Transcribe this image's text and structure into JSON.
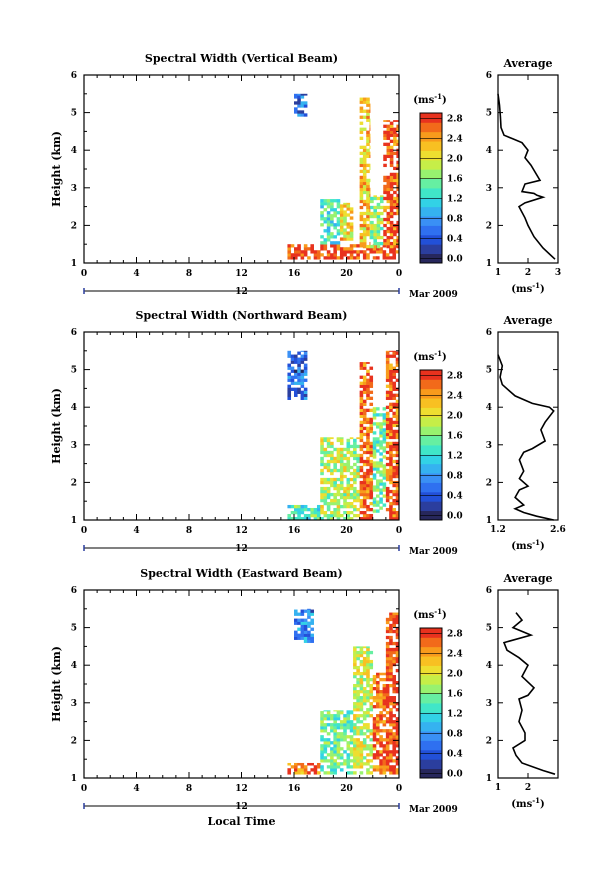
{
  "figure": {
    "xlabel": "Local Time",
    "date_label": "Mar 2009",
    "day_label": "12",
    "colorbar_unit": "(ms",
    "colorbar_unit_exp": "-1",
    "colorbar_unit_close": ")",
    "avg_title": "Average",
    "avg_unit": "(ms",
    "avg_unit_exp": "-1",
    "avg_unit_close": ")"
  },
  "chart_data": [
    {
      "type": "heatmap",
      "title": "Spectral Width (Vertical Beam)",
      "ylabel": "Height (km)",
      "xlim": [
        0,
        24
      ],
      "ylim": [
        1,
        6
      ],
      "xticks": [
        "0",
        "4",
        "8",
        "12",
        "16",
        "20",
        "0"
      ],
      "yticks": [
        "1",
        "2",
        "3",
        "4",
        "5",
        "6"
      ],
      "colorbar_ticks": [
        "0.0",
        "0.4",
        "0.8",
        "1.2",
        "1.6",
        "2.0",
        "2.4",
        "2.8"
      ],
      "colorbar_range": [
        0,
        3.0
      ],
      "regions": [
        {
          "x": [
            15.5,
            24.0
          ],
          "y": [
            1.1,
            1.5
          ],
          "level": 2.9
        },
        {
          "x": [
            18.0,
            19.5
          ],
          "y": [
            1.5,
            2.7
          ],
          "level": 1.4
        },
        {
          "x": [
            19.5,
            20.5
          ],
          "y": [
            1.6,
            2.6
          ],
          "level": 2.2
        },
        {
          "x": [
            21.0,
            21.8
          ],
          "y": [
            1.4,
            5.4
          ],
          "level": 2.3
        },
        {
          "x": [
            21.8,
            22.8
          ],
          "y": [
            1.4,
            2.8
          ],
          "level": 1.8
        },
        {
          "x": [
            22.8,
            24.0
          ],
          "y": [
            1.4,
            4.8
          ],
          "level": 2.8
        },
        {
          "x": [
            16.0,
            17.0
          ],
          "y": [
            4.9,
            5.5
          ],
          "level": 0.6
        }
      ]
    },
    {
      "type": "line",
      "title": "Average",
      "xlabel": "(ms-1)",
      "xlim": [
        1,
        3
      ],
      "ylim": [
        1,
        6
      ],
      "xticks": [
        "1",
        "2",
        "3"
      ],
      "yticks": [
        "1",
        "2",
        "3",
        "4",
        "5",
        "6"
      ],
      "x": [
        1.0,
        1.05,
        1.08,
        1.1,
        1.2,
        1.5,
        1.8,
        2.0,
        1.9,
        2.1,
        2.4,
        1.9,
        1.8,
        2.2,
        2.3,
        2.5,
        1.9,
        1.7,
        1.9,
        2.0,
        2.2,
        2.5,
        2.9
      ],
      "y": [
        5.5,
        5.2,
        4.9,
        4.6,
        4.4,
        4.3,
        4.2,
        4.0,
        3.8,
        3.6,
        3.2,
        3.1,
        2.9,
        2.85,
        2.8,
        2.75,
        2.6,
        2.5,
        2.2,
        2.0,
        1.7,
        1.4,
        1.1
      ]
    },
    {
      "type": "heatmap",
      "title": "Spectral Width (Northward Beam)",
      "ylabel": "Height (km)",
      "xlim": [
        0,
        24
      ],
      "ylim": [
        1,
        6
      ],
      "xticks": [
        "0",
        "4",
        "8",
        "12",
        "16",
        "20",
        "0"
      ],
      "yticks": [
        "1",
        "2",
        "3",
        "4",
        "5",
        "6"
      ],
      "colorbar_ticks": [
        "0.0",
        "0.4",
        "0.8",
        "1.2",
        "1.6",
        "2.0",
        "2.4",
        "2.8"
      ],
      "colorbar_range": [
        0,
        3.0
      ],
      "regions": [
        {
          "x": [
            15.5,
            18.0
          ],
          "y": [
            1.0,
            1.4
          ],
          "level": 1.5
        },
        {
          "x": [
            18.0,
            21.0
          ],
          "y": [
            1.0,
            3.2
          ],
          "level": 1.9
        },
        {
          "x": [
            21.0,
            22.0
          ],
          "y": [
            1.0,
            5.2
          ],
          "level": 2.7
        },
        {
          "x": [
            22.0,
            23.0
          ],
          "y": [
            1.2,
            4.0
          ],
          "level": 1.6
        },
        {
          "x": [
            23.0,
            24.0
          ],
          "y": [
            1.0,
            5.5
          ],
          "level": 2.8
        },
        {
          "x": [
            15.5,
            17.0
          ],
          "y": [
            4.2,
            5.5
          ],
          "level": 0.6
        }
      ]
    },
    {
      "type": "line",
      "title": "Average",
      "xlabel": "(ms-1)",
      "xlim": [
        1.2,
        2.6
      ],
      "ylim": [
        1,
        6
      ],
      "xticks": [
        "1.2",
        "2.6"
      ],
      "yticks": [
        "1",
        "2",
        "3",
        "4",
        "5",
        "6"
      ],
      "x": [
        1.2,
        1.3,
        1.25,
        1.3,
        1.6,
        2.0,
        2.4,
        2.5,
        2.3,
        2.2,
        2.3,
        2.0,
        1.8,
        1.7,
        1.8,
        1.7,
        1.9,
        1.7,
        1.6,
        1.8,
        1.6,
        1.8,
        2.1,
        2.5
      ],
      "y": [
        5.4,
        5.1,
        4.8,
        4.6,
        4.3,
        4.1,
        4.0,
        3.9,
        3.6,
        3.4,
        3.1,
        2.9,
        2.8,
        2.6,
        2.3,
        2.1,
        1.9,
        1.8,
        1.6,
        1.4,
        1.3,
        1.2,
        1.1,
        1.0
      ]
    },
    {
      "type": "heatmap",
      "title": "Spectral Width (Eastward Beam)",
      "ylabel": "Height (km)",
      "xlim": [
        0,
        24
      ],
      "ylim": [
        1,
        6
      ],
      "xticks": [
        "0",
        "4",
        "8",
        "12",
        "16",
        "20",
        "0"
      ],
      "yticks": [
        "1",
        "2",
        "3",
        "4",
        "5",
        "6"
      ],
      "colorbar_ticks": [
        "0.0",
        "0.4",
        "0.8",
        "1.2",
        "1.6",
        "2.0",
        "2.4",
        "2.8"
      ],
      "colorbar_range": [
        0,
        3.0
      ],
      "regions": [
        {
          "x": [
            15.5,
            18.0
          ],
          "y": [
            1.1,
            1.4
          ],
          "level": 2.6
        },
        {
          "x": [
            18.0,
            20.5
          ],
          "y": [
            1.1,
            2.8
          ],
          "level": 1.6
        },
        {
          "x": [
            20.5,
            22.0
          ],
          "y": [
            1.1,
            4.5
          ],
          "level": 2.0
        },
        {
          "x": [
            22.0,
            23.0
          ],
          "y": [
            1.1,
            3.8
          ],
          "level": 2.7
        },
        {
          "x": [
            23.0,
            24.0
          ],
          "y": [
            1.1,
            5.4
          ],
          "level": 2.9
        },
        {
          "x": [
            16.0,
            17.5
          ],
          "y": [
            4.6,
            5.5
          ],
          "level": 0.8
        }
      ]
    },
    {
      "type": "line",
      "title": "Average",
      "xlabel": "(ms-1)",
      "xlim": [
        1,
        3
      ],
      "ylim": [
        1,
        6
      ],
      "xticks": [
        "1",
        "2"
      ],
      "yticks": [
        "1",
        "2",
        "3",
        "4",
        "5",
        "6"
      ],
      "x": [
        1.6,
        1.8,
        1.5,
        2.1,
        1.2,
        1.3,
        1.7,
        2.0,
        1.8,
        2.2,
        2.0,
        1.7,
        1.8,
        1.7,
        1.9,
        1.9,
        1.5,
        1.6,
        1.8,
        2.5,
        2.9
      ],
      "y": [
        5.4,
        5.2,
        5.0,
        4.8,
        4.6,
        4.4,
        4.2,
        4.0,
        3.7,
        3.4,
        3.2,
        3.1,
        2.8,
        2.5,
        2.2,
        2.0,
        1.8,
        1.6,
        1.4,
        1.2,
        1.1
      ]
    }
  ]
}
